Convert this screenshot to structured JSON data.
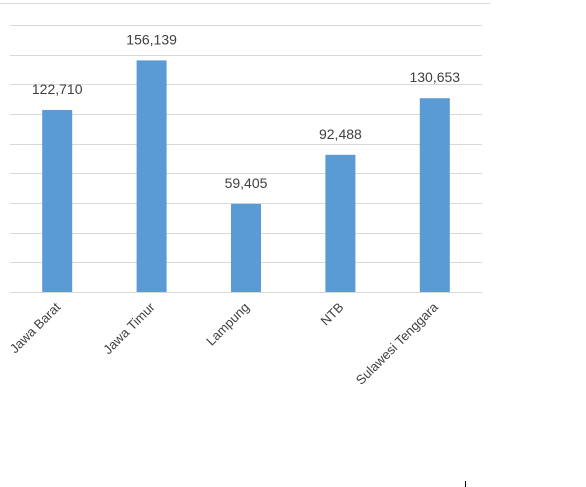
{
  "chart_data": {
    "type": "bar",
    "categories": [
      "Jawa Barat",
      "Jawa Timur",
      "Lampung",
      "NTB",
      "Sulawesi Tenggara"
    ],
    "values": [
      122710,
      156139,
      59405,
      92488,
      130653
    ],
    "value_labels": [
      "122,710",
      "156,139",
      "59,405",
      "92,488",
      "130,653"
    ],
    "ylim": [
      0,
      180000
    ],
    "grid": true,
    "legend": "none",
    "bar_color": "#5B9BD5",
    "grid_color": "#D9D9D9",
    "text_color": "#404040"
  }
}
